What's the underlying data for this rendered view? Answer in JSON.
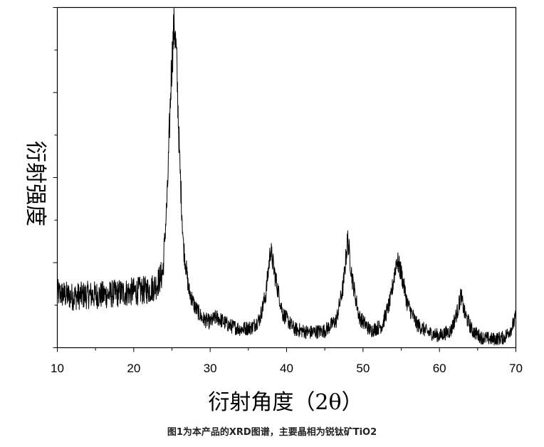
{
  "chart_data": {
    "type": "line",
    "title": "",
    "xlabel": "衍射角度（2θ）",
    "ylabel": "衍射强度",
    "xlim": [
      10,
      70
    ],
    "x_ticks": [
      10,
      20,
      30,
      40,
      50,
      60,
      70
    ],
    "x_tick_labels": [
      "10",
      "20",
      "30",
      "40",
      "50",
      "60",
      "70"
    ],
    "ylim": [
      0,
      100
    ],
    "grid": false,
    "legend": "none",
    "line_color": "#000000",
    "series": [
      {
        "x": [
          10,
          12,
          14,
          16,
          18,
          20,
          22,
          23,
          23.8,
          24.4,
          24.9,
          25.3,
          25.6,
          26.0,
          26.5,
          27.2,
          28.0,
          29.0,
          30.0,
          30.8,
          31.5,
          32.5,
          34,
          35.5,
          36.5,
          37.3,
          37.9,
          38.5,
          39.5,
          41,
          43,
          45,
          46.5,
          47.4,
          48.0,
          48.6,
          49.5,
          51,
          52.5,
          53.6,
          54.4,
          55.0,
          55.8,
          57,
          58.5,
          60,
          61.5,
          62.4,
          62.8,
          63.3,
          64.3,
          65.5,
          67,
          68.5,
          69.5,
          70
        ],
        "y": [
          16,
          15,
          15.5,
          15.5,
          16,
          16.5,
          17,
          18.5,
          22,
          45,
          80,
          96,
          85,
          55,
          30,
          17,
          12,
          8.5,
          7.5,
          9,
          8,
          6.5,
          5.5,
          6,
          8.5,
          16,
          29,
          21,
          10,
          5.5,
          4.5,
          5,
          8,
          18,
          32,
          20,
          9,
          5,
          6.5,
          14,
          26,
          22,
          13,
          7,
          4.5,
          3.5,
          5,
          11,
          15.5,
          10,
          5,
          3,
          2.5,
          3,
          6,
          9
        ]
      }
    ]
  },
  "caption": "图1为本产品的XRD图谱，主要晶相为锐钛矿TiO2"
}
